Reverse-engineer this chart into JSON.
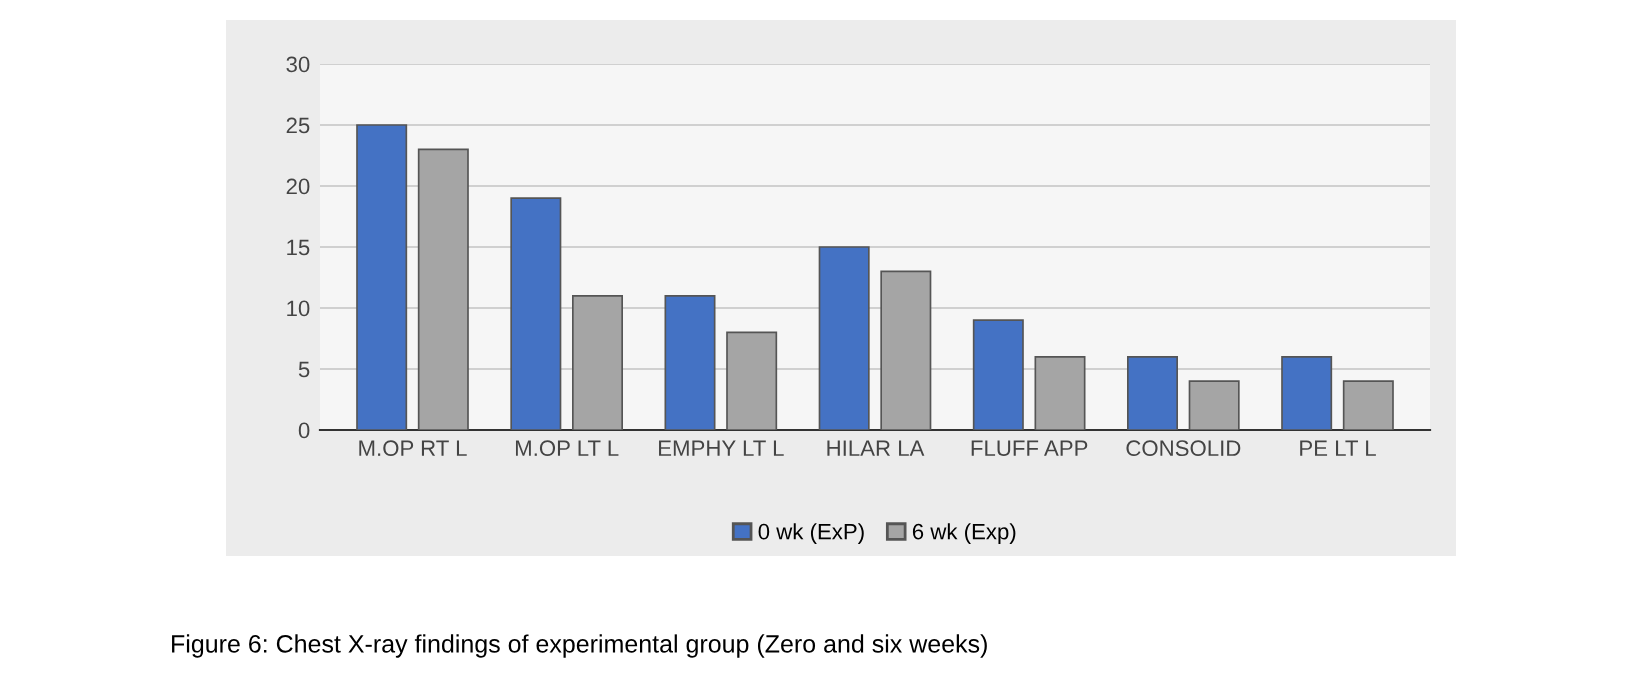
{
  "chart_data": {
    "type": "bar",
    "categories": [
      "M.OP RT L",
      "M.OP LT L",
      "EMPHY LT L",
      "HILAR LA",
      "FLUFF APP",
      "CONSOLID",
      "PE LT L"
    ],
    "series": [
      {
        "name": "0 wk (ExP)",
        "color": "#4472c4",
        "values": [
          25,
          19,
          11,
          15,
          9,
          6,
          6
        ]
      },
      {
        "name": "6 wk (Exp)",
        "color": "#a5a5a5",
        "values": [
          23,
          11,
          8,
          13,
          6,
          4,
          4
        ]
      }
    ],
    "ylim": [
      0,
      30
    ],
    "yticks": [
      0,
      5,
      10,
      15,
      20,
      25,
      30
    ],
    "grid": "y",
    "legend": "bottom",
    "annotations": [
      "Figure 6: Chest X-ray findings of experimental group (Zero and six weeks)"
    ]
  }
}
